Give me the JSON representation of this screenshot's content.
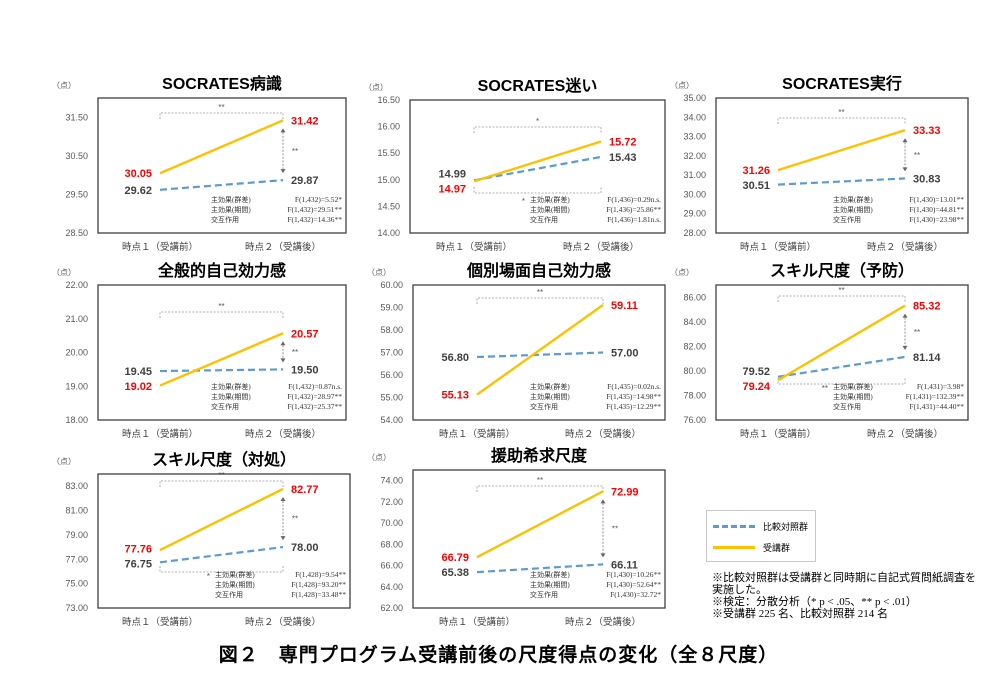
{
  "colors": {
    "control": "#5b9bd5",
    "treatment": "#ffc000",
    "treatment_label": "#ff0000",
    "control_label": "#404040",
    "axis": "#595959"
  },
  "common": {
    "unit_label": "（点）",
    "x_categories": [
      "時点１（受講前）",
      "時点２（受講後）"
    ],
    "stat_labels": [
      "主効果(群差)",
      "主効果(期間)",
      "交互作用"
    ]
  },
  "legend": {
    "control": "比較対照群",
    "treatment": "受講群"
  },
  "notes": [
    "※比較対照群は受講群と同時期に自記式質問紙調査を実施した。",
    "※検定：分散分析（* p < .05、** p < .01）",
    "※受講群 225 名、比較対照群 214 名"
  ],
  "caption": "図２　専門プログラム受講前後の尺度得点の変化（全８尺度）",
  "chart_data": [
    {
      "type": "line",
      "title": "SOCRATES病識",
      "ylim": [
        28.5,
        32.0
      ],
      "yticks": [
        "28.50",
        "29.50",
        "30.50",
        "31.50"
      ],
      "ytick_values": [
        28.5,
        29.5,
        30.5,
        31.5
      ],
      "series": [
        {
          "name": "比較対照群",
          "values": [
            29.62,
            29.87
          ],
          "labels": [
            "29.62",
            "29.87"
          ]
        },
        {
          "name": "受講群",
          "values": [
            30.05,
            31.42
          ],
          "labels": [
            "30.05",
            "31.42"
          ]
        }
      ],
      "stats": [
        "F(1,432)=5.52*",
        "F(1,432)=29.51**",
        "F(1,432)=14.36**"
      ],
      "marks": {
        "top": "**",
        "arrow": "**",
        "bottom": ""
      }
    },
    {
      "type": "line",
      "title": "SOCRATES迷い",
      "ylim": [
        14.0,
        16.5
      ],
      "yticks": [
        "14.00",
        "14.50",
        "15.00",
        "15.50",
        "16.00",
        "16.50"
      ],
      "ytick_values": [
        14,
        14.5,
        15,
        15.5,
        16,
        16.5
      ],
      "series": [
        {
          "name": "比較対照群",
          "values": [
            14.99,
            15.43
          ],
          "labels": [
            "14.99",
            "15.43"
          ]
        },
        {
          "name": "受講群",
          "values": [
            14.97,
            15.72
          ],
          "labels": [
            "14.97",
            "15.72"
          ]
        }
      ],
      "stats": [
        "F(1,436)=0.29n.s.",
        "F(1,436)=25.86**",
        "F(1,436)=1.81n.s."
      ],
      "marks": {
        "top": "*",
        "arrow": "",
        "bottom": "*"
      }
    },
    {
      "type": "line",
      "title": "SOCRATES実行",
      "ylim": [
        28.0,
        35.0
      ],
      "yticks": [
        "28.00",
        "29.00",
        "30.00",
        "31.00",
        "32.00",
        "33.00",
        "34.00",
        "35.00"
      ],
      "ytick_values": [
        28,
        29,
        30,
        31,
        32,
        33,
        34,
        35
      ],
      "series": [
        {
          "name": "比較対照群",
          "values": [
            30.51,
            30.83
          ],
          "labels": [
            "30.51",
            "30.83"
          ]
        },
        {
          "name": "受講群",
          "values": [
            31.26,
            33.33
          ],
          "labels": [
            "31.26",
            "33.33"
          ]
        }
      ],
      "stats": [
        "F(1,430)=13.01**",
        "F(1,430)=44.81**",
        "F(1,430)=23.98**"
      ],
      "marks": {
        "top": "**",
        "arrow": "**",
        "bottom": ""
      }
    },
    {
      "type": "line",
      "title": "全般的自己効力感",
      "ylim": [
        18.0,
        22.0
      ],
      "yticks": [
        "18.00",
        "19.00",
        "20.00",
        "21.00",
        "22.00"
      ],
      "ytick_values": [
        18,
        19,
        20,
        21,
        22
      ],
      "series": [
        {
          "name": "比較対照群",
          "values": [
            19.45,
            19.5
          ],
          "labels": [
            "19.45",
            "19.50"
          ]
        },
        {
          "name": "受講群",
          "values": [
            19.02,
            20.57
          ],
          "labels": [
            "19.02",
            "20.57"
          ]
        }
      ],
      "stats": [
        "F(1,432)=0.87n.s.",
        "F(1,432)=28.97**",
        "F(1,432)=25.37**"
      ],
      "marks": {
        "top": "**",
        "arrow": "**",
        "bottom": ""
      }
    },
    {
      "type": "line",
      "title": "個別場面自己効力感",
      "ylim": [
        54.0,
        60.0
      ],
      "yticks": [
        "54.00",
        "55.00",
        "56.00",
        "57.00",
        "58.00",
        "59.00",
        "60.00"
      ],
      "ytick_values": [
        54,
        55,
        56,
        57,
        58,
        59,
        60
      ],
      "series": [
        {
          "name": "比較対照群",
          "values": [
            56.8,
            57.0
          ],
          "labels": [
            "56.80",
            "57.00"
          ]
        },
        {
          "name": "受講群",
          "values": [
            55.13,
            59.11
          ],
          "labels": [
            "55.13",
            "59.11"
          ]
        }
      ],
      "stats": [
        "F(1,435)=0.02n.s.",
        "F(1,435)=14.98**",
        "F(1,435)=12.29**"
      ],
      "marks": {
        "top": "**",
        "arrow": "",
        "bottom": ""
      }
    },
    {
      "type": "line",
      "title": "スキル尺度（予防）",
      "ylim": [
        76.0,
        87.0
      ],
      "yticks": [
        "76.00",
        "78.00",
        "80.00",
        "82.00",
        "84.00",
        "86.00"
      ],
      "ytick_values": [
        76,
        78,
        80,
        82,
        84,
        86
      ],
      "series": [
        {
          "name": "比較対照群",
          "values": [
            79.52,
            81.14
          ],
          "labels": [
            "79.52",
            "81.14"
          ]
        },
        {
          "name": "受講群",
          "values": [
            79.24,
            85.32
          ],
          "labels": [
            "79.24",
            "85.32"
          ]
        }
      ],
      "stats": [
        "F(1,431)=3.98*",
        "F(1,431)=132.39**",
        "F(1,431)=44.40**"
      ],
      "marks": {
        "top": "**",
        "arrow": "**",
        "bottom": "**"
      }
    },
    {
      "type": "line",
      "title": "スキル尺度（対処）",
      "ylim": [
        73.0,
        84.0
      ],
      "yticks": [
        "73.00",
        "75.00",
        "77.00",
        "79.00",
        "81.00",
        "83.00"
      ],
      "ytick_values": [
        73,
        75,
        77,
        79,
        81,
        83
      ],
      "series": [
        {
          "name": "比較対照群",
          "values": [
            76.75,
            78.0
          ],
          "labels": [
            "76.75",
            "78.00"
          ]
        },
        {
          "name": "受講群",
          "values": [
            77.76,
            82.77
          ],
          "labels": [
            "77.76",
            "82.77"
          ]
        }
      ],
      "stats": [
        "F(1,428)=9.54**",
        "F(1,428)=93.20**",
        "F(1,428)=33.48**"
      ],
      "marks": {
        "top": "**",
        "arrow": "**",
        "bottom": "*"
      }
    },
    {
      "type": "line",
      "title": "援助希求尺度",
      "ylim": [
        62.0,
        75.0
      ],
      "yticks": [
        "62.00",
        "64.00",
        "66.00",
        "68.00",
        "70.00",
        "72.00",
        "74.00"
      ],
      "ytick_values": [
        62,
        64,
        66,
        68,
        70,
        72,
        74
      ],
      "series": [
        {
          "name": "比較対照群",
          "values": [
            65.38,
            66.11
          ],
          "labels": [
            "65.38",
            "66.11"
          ]
        },
        {
          "name": "受講群",
          "values": [
            66.79,
            72.99
          ],
          "labels": [
            "66.79",
            "72.99"
          ]
        }
      ],
      "stats": [
        "F(1,430)=10.26**",
        "F(1,430)=52.64**",
        "F(1,430)=32.72*"
      ],
      "marks": {
        "top": "**",
        "arrow": "**",
        "bottom": ""
      }
    }
  ]
}
